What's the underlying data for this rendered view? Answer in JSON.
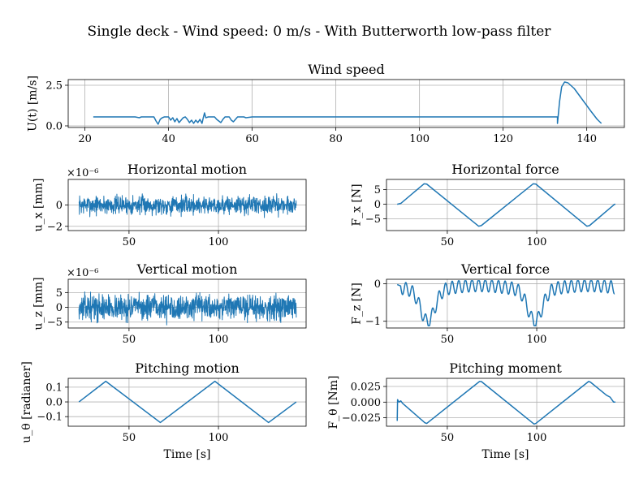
{
  "figure": {
    "suptitle": "Single deck - Wind speed: 0 m/s - With Butterworth low-pass filter",
    "line_color": "#1f77b4"
  },
  "chart_data": [
    {
      "id": "wind",
      "type": "line",
      "title": "Wind speed",
      "xlabel": "",
      "ylabel": "U(t) [m/s]",
      "offset_text": "",
      "xlim": [
        16,
        149
      ],
      "ylim": [
        -0.1,
        2.85
      ],
      "xticks": [
        20,
        40,
        60,
        80,
        100,
        120,
        140
      ],
      "yticks": [
        0.0,
        2.5
      ],
      "ytick_labels": [
        "0.0",
        "2.5"
      ],
      "grid": true,
      "series": [
        {
          "kind": "wind",
          "points": [
            [
              22.0,
              0.55
            ],
            [
              32.0,
              0.55
            ],
            [
              33.0,
              0.5
            ],
            [
              33.5,
              0.55
            ],
            [
              36.5,
              0.55
            ],
            [
              37.0,
              0.3
            ],
            [
              37.5,
              0.1
            ],
            [
              38.0,
              0.4
            ],
            [
              38.5,
              0.5
            ],
            [
              39.0,
              0.55
            ],
            [
              40.0,
              0.55
            ],
            [
              40.5,
              0.35
            ],
            [
              41.0,
              0.5
            ],
            [
              41.5,
              0.25
            ],
            [
              42.0,
              0.45
            ],
            [
              42.5,
              0.2
            ],
            [
              43.0,
              0.35
            ],
            [
              43.5,
              0.5
            ],
            [
              44.0,
              0.55
            ],
            [
              44.5,
              0.4
            ],
            [
              45.0,
              0.2
            ],
            [
              45.5,
              0.35
            ],
            [
              46.0,
              0.15
            ],
            [
              46.5,
              0.35
            ],
            [
              47.0,
              0.2
            ],
            [
              47.5,
              0.4
            ],
            [
              48.0,
              0.15
            ],
            [
              48.3,
              0.5
            ],
            [
              48.6,
              0.8
            ],
            [
              48.9,
              0.5
            ],
            [
              49.5,
              0.55
            ],
            [
              51.0,
              0.55
            ],
            [
              51.5,
              0.4
            ],
            [
              52.0,
              0.3
            ],
            [
              52.5,
              0.2
            ],
            [
              53.0,
              0.4
            ],
            [
              53.5,
              0.55
            ],
            [
              54.5,
              0.55
            ],
            [
              55.0,
              0.35
            ],
            [
              55.5,
              0.25
            ],
            [
              56.0,
              0.4
            ],
            [
              56.5,
              0.55
            ],
            [
              58.0,
              0.55
            ],
            [
              58.5,
              0.5
            ],
            [
              60.0,
              0.55
            ],
            [
              133.0,
              0.55
            ],
            [
              133.0,
              0.15
            ],
            [
              133.5,
              1.5
            ],
            [
              134.0,
              2.4
            ],
            [
              134.7,
              2.7
            ],
            [
              135.5,
              2.65
            ],
            [
              137.0,
              2.3
            ],
            [
              139.0,
              1.6
            ],
            [
              141.0,
              0.9
            ],
            [
              142.5,
              0.4
            ],
            [
              143.5,
              0.15
            ]
          ]
        }
      ]
    },
    {
      "id": "hmotion",
      "type": "line",
      "title": "Horizontal motion",
      "xlabel": "",
      "ylabel": "u_x [mm]",
      "offset_text": "×10⁻⁶",
      "xlim": [
        16,
        149
      ],
      "ylim": [
        -2.4,
        2.4
      ],
      "xticks": [
        50,
        100
      ],
      "yticks": [
        -2,
        0
      ],
      "ytick_labels": [
        "−2",
        "0"
      ],
      "grid": true,
      "series": [
        {
          "kind": "noise",
          "x_start": 22,
          "x_end": 143.5,
          "amplitude": 1.3,
          "n": 900,
          "seed": 7
        }
      ]
    },
    {
      "id": "hforce",
      "type": "line",
      "title": "Horizontal force",
      "xlabel": "",
      "ylabel": "F_x [N]",
      "offset_text": "",
      "xlim": [
        16,
        149
      ],
      "ylim": [
        -9,
        8.5
      ],
      "xticks": [
        50,
        100
      ],
      "yticks": [
        -5,
        0,
        5
      ],
      "ytick_labels": [
        "−5",
        "0",
        "5"
      ],
      "grid": true,
      "series": [
        {
          "kind": "points",
          "points": [
            [
              22,
              0
            ],
            [
              24,
              0.3
            ],
            [
              37,
              7
            ],
            [
              38.5,
              6.9
            ],
            [
              67.5,
              -7.5
            ],
            [
              69,
              -7.3
            ],
            [
              98,
              7
            ],
            [
              99.5,
              6.9
            ],
            [
              128,
              -7.5
            ],
            [
              129.5,
              -7.3
            ],
            [
              143.5,
              0
            ],
            [
              144,
              0
            ]
          ]
        }
      ]
    },
    {
      "id": "vmotion",
      "type": "line",
      "title": "Vertical motion",
      "xlabel": "",
      "ylabel": "u_z [mm]",
      "offset_text": "×10⁻⁶",
      "xlim": [
        16,
        149
      ],
      "ylim": [
        -7,
        9.5
      ],
      "xticks": [
        50,
        100
      ],
      "yticks": [
        -5,
        0,
        5
      ],
      "ytick_labels": [
        "−5",
        "0",
        "5"
      ],
      "grid": true,
      "series": [
        {
          "kind": "noise",
          "x_start": 22,
          "x_end": 143.5,
          "amplitude": 6.2,
          "n": 900,
          "seed": 13
        }
      ]
    },
    {
      "id": "vforce",
      "type": "line",
      "title": "Vertical force",
      "xlabel": "",
      "ylabel": "F_z [N]",
      "offset_text": "",
      "xlim": [
        16,
        149
      ],
      "ylim": [
        -1.18,
        0.12
      ],
      "xticks": [
        50,
        100
      ],
      "yticks": [
        -1,
        0
      ],
      "ytick_labels": [
        "−1",
        "0"
      ],
      "grid": true,
      "series": [
        {
          "kind": "vforce",
          "x_start": 22,
          "x_end": 143.5,
          "troughs": [
            39,
            99
          ],
          "period": 3.7
        }
      ]
    },
    {
      "id": "pmotion",
      "type": "line",
      "title": "Pitching motion",
      "xlabel": "Time [s]",
      "ylabel": "u_θ [radianer]",
      "offset_text": "",
      "xlim": [
        16,
        149
      ],
      "ylim": [
        -0.165,
        0.16
      ],
      "xticks": [
        50,
        100
      ],
      "yticks": [
        -0.1,
        0.0,
        0.1
      ],
      "ytick_labels": [
        "−0.1",
        "0.0",
        "0.1"
      ],
      "grid": true,
      "series": [
        {
          "kind": "points",
          "points": [
            [
              22,
              0
            ],
            [
              37,
              0.14
            ],
            [
              67.5,
              -0.14
            ],
            [
              98,
              0.14
            ],
            [
              128,
              -0.14
            ],
            [
              143.5,
              0
            ]
          ]
        }
      ]
    },
    {
      "id": "pmoment",
      "type": "line",
      "title": "Pitching moment",
      "xlabel": "Time [s]",
      "ylabel": "F_θ [Nm]",
      "offset_text": "",
      "xlim": [
        16,
        149
      ],
      "ylim": [
        -0.0385,
        0.038
      ],
      "xticks": [
        50,
        100
      ],
      "yticks": [
        -0.025,
        0.0,
        0.025
      ],
      "ytick_labels": [
        "−0.025",
        "0.000",
        "0.025"
      ],
      "grid": true,
      "series": [
        {
          "kind": "points",
          "points": [
            [
              22,
              -0.03
            ],
            [
              22.2,
              0.004
            ],
            [
              23,
              0.0
            ],
            [
              24,
              0.002
            ],
            [
              25,
              -0.002
            ],
            [
              37.5,
              -0.033
            ],
            [
              38.5,
              -0.034
            ],
            [
              68,
              0.033
            ],
            [
              69,
              0.033
            ],
            [
              98.5,
              -0.035
            ],
            [
              99.5,
              -0.034
            ],
            [
              129,
              0.033
            ],
            [
              130,
              0.032
            ],
            [
              139,
              0.011
            ],
            [
              141,
              0.008
            ],
            [
              143,
              0.0
            ],
            [
              144,
              0.0
            ]
          ]
        }
      ]
    }
  ]
}
